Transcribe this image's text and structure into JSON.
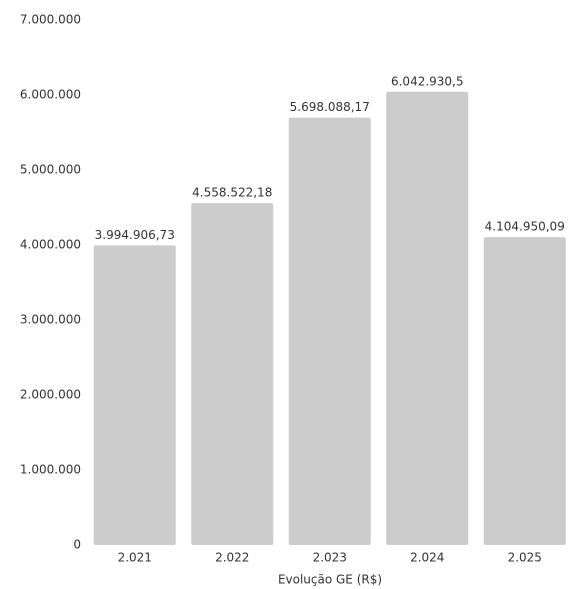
{
  "chart_data": {
    "type": "bar",
    "x_label": "Evolução GE (R$)",
    "categories": [
      "2.021",
      "2.022",
      "2.023",
      "2.024",
      "2.025"
    ],
    "values": [
      3994906.73,
      4558522.18,
      5698088.17,
      6042930.5,
      4104950.09
    ],
    "value_labels": [
      "3.994.906,73",
      "4.558.522,18",
      "5.698.088,17",
      "6.042.930,5",
      "4.104.950,09"
    ],
    "color": "#cccccc",
    "ylim": [
      0,
      7000000
    ],
    "yticks": [
      0,
      {
        "value": 1000000,
        "label": "1.000.000"
      },
      {
        "value": 2000000,
        "label": "2.000.000"
      },
      {
        "value": 3000000,
        "label": "3.000.000"
      },
      {
        "value": 4000000,
        "label": "4.000.000"
      },
      {
        "value": 5000000,
        "label": "5.000.000"
      },
      {
        "value": 6000000,
        "label": "6.000.000"
      },
      {
        "value": 7000000,
        "label": "7.000.000"
      }
    ],
    "grid": false
  }
}
